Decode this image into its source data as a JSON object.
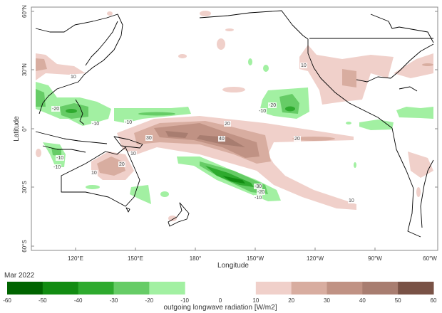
{
  "map": {
    "title": "Mar 2022",
    "xlabel": "Longitude",
    "ylabel": "Latitude",
    "lon_ticks": [
      "120°E",
      "150°E",
      "180°",
      "150°W",
      "120°W",
      "90°W",
      "60°W"
    ],
    "lat_ticks": [
      "60°N",
      "30°N",
      "0°",
      "30°S",
      "60°S"
    ],
    "contour_labels": [
      "-20",
      "-10",
      "-10",
      "10",
      "20",
      "10",
      "-10",
      "20",
      "40",
      "20",
      "30",
      "10",
      "-20",
      "-10",
      "-30",
      "-20",
      "-10",
      "10",
      "10",
      "-10"
    ]
  },
  "colorbar": {
    "label": "outgoing longwave radiation [W/m2]",
    "ticks": [
      "-60",
      "-50",
      "-40",
      "-30",
      "-20",
      "-10",
      "0",
      "10",
      "20",
      "30",
      "40",
      "50",
      "60"
    ],
    "negative_colors": [
      "#006400",
      "#128c12",
      "#2eaa2e",
      "#66cc66",
      "#a2f0a2"
    ],
    "positive_colors": [
      "#f0d0ca",
      "#d8ada0",
      "#c09284",
      "#a87d70",
      "#795246"
    ]
  }
}
